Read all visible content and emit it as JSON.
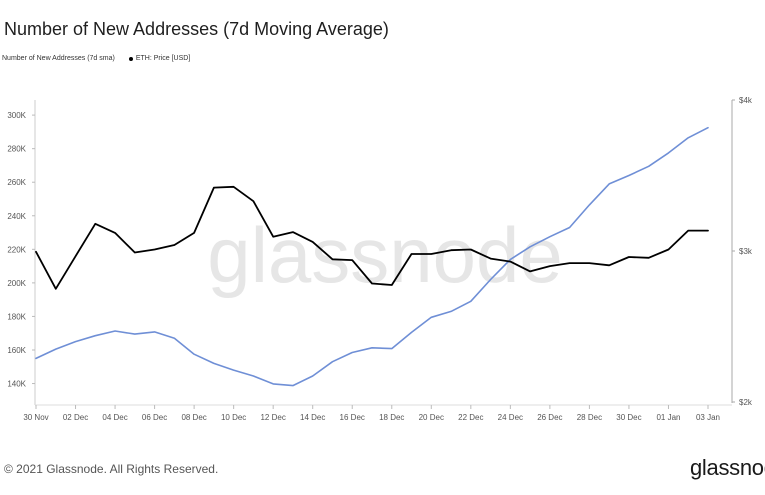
{
  "title": "Number of New Addresses (7d Moving Average)",
  "legend": {
    "series1": "Number of New Addresses (7d sma)",
    "series2": "ETH: Price [USD]"
  },
  "watermark": "glassnode",
  "footer": "© 2021 Glassnode. All Rights Reserved.",
  "logo": "glassnode",
  "colors": {
    "addresses": "#6f8fd6",
    "price": "#000000",
    "axis": "#bbbbbb",
    "watermark": "#e6e6e6"
  },
  "chart_data": {
    "type": "line",
    "title": "Number of New Addresses (7d Moving Average)",
    "x": [
      "30 Nov",
      "01 Dec",
      "02 Dec",
      "03 Dec",
      "04 Dec",
      "05 Dec",
      "06 Dec",
      "07 Dec",
      "08 Dec",
      "09 Dec",
      "10 Dec",
      "11 Dec",
      "12 Dec",
      "13 Dec",
      "14 Dec",
      "15 Dec",
      "16 Dec",
      "17 Dec",
      "18 Dec",
      "19 Dec",
      "20 Dec",
      "21 Dec",
      "22 Dec",
      "23 Dec",
      "24 Dec",
      "25 Dec",
      "26 Dec",
      "27 Dec",
      "28 Dec",
      "29 Dec",
      "30 Dec",
      "31 Dec",
      "01 Jan",
      "02 Jan",
      "03 Jan"
    ],
    "x_tick_labels": [
      "30 Nov",
      "02 Dec",
      "04 Dec",
      "06 Dec",
      "08 Dec",
      "10 Dec",
      "12 Dec",
      "14 Dec",
      "16 Dec",
      "18 Dec",
      "20 Dec",
      "22 Dec",
      "24 Dec",
      "26 Dec",
      "28 Dec",
      "30 Dec",
      "01 Jan",
      "03 Jan"
    ],
    "series": [
      {
        "name": "Number of New Addresses (7d sma)",
        "axis": "left",
        "color": "#6f8fd6",
        "values": [
          155000,
          160500,
          165000,
          168500,
          171300,
          169500,
          170800,
          167000,
          157500,
          152000,
          148000,
          144500,
          139800,
          138800,
          144500,
          153000,
          158500,
          161300,
          160800,
          170500,
          179500,
          183000,
          189000,
          202000,
          214000,
          221500,
          227500,
          233000,
          246500,
          259000,
          264000,
          269500,
          277500,
          286500,
          292500
        ]
      },
      {
        "name": "ETH: Price [USD]",
        "axis": "right",
        "color": "#000000",
        "values": [
          2995,
          2750,
          2965,
          3180,
          3120,
          2990,
          3010,
          3040,
          3120,
          3420,
          3425,
          3330,
          3095,
          3125,
          3060,
          2945,
          2940,
          2785,
          2775,
          2980,
          2980,
          3005,
          3010,
          2950,
          2930,
          2865,
          2900,
          2920,
          2920,
          2905,
          2960,
          2955,
          3010,
          3135,
          3135
        ]
      }
    ],
    "y_left": {
      "ylim": [
        129000,
        309000
      ],
      "ticks": [
        140000,
        160000,
        180000,
        200000,
        220000,
        240000,
        260000,
        280000,
        300000
      ],
      "tick_labels": [
        "140K",
        "160K",
        "180K",
        "200K",
        "220K",
        "240K",
        "260K",
        "280K",
        "300K"
      ]
    },
    "y_right": {
      "ylim": [
        2000,
        4000
      ],
      "ticks": [
        2000,
        3000,
        4000
      ],
      "tick_labels": [
        "$2k",
        "$3k",
        "$4k"
      ]
    }
  }
}
